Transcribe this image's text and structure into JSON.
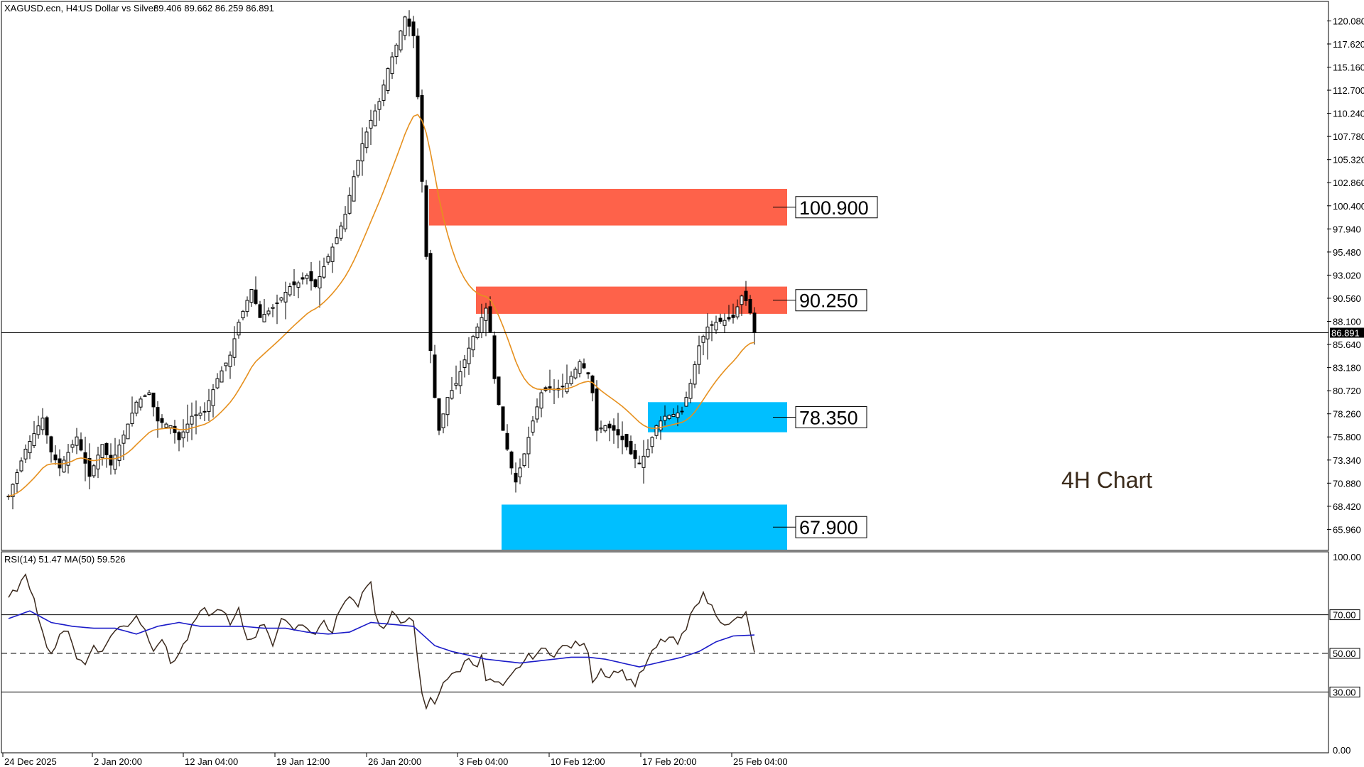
{
  "header": {
    "symbol": "XAGUSD.ecn, H4:",
    "description": "US Dollar vs Silver",
    "ohlc": "89.406 89.662 86.259 86.891"
  },
  "overlay_text": "4H Chart",
  "current_price_label": "86.891",
  "zones": [
    {
      "label": "100.900",
      "color": "#fe624a",
      "price_top": 102.2,
      "price_bottom": 98.3,
      "start": "29 Jan 08:00",
      "end": "26 Feb 16:00"
    },
    {
      "label": "90.250",
      "color": "#fe624a",
      "price_top": 91.8,
      "price_bottom": 88.9,
      "start": "3 Feb 12:00",
      "end": "26 Feb 16:00"
    },
    {
      "label": "78.350",
      "color": "#00bfff",
      "price_top": 79.5,
      "price_bottom": 76.3,
      "start": "18 Feb 16:00",
      "end": "26 Feb 16:00"
    },
    {
      "label": "67.900",
      "color": "#00bfff",
      "price_top": 68.6,
      "price_bottom": 63.8,
      "start": "5 Feb 04:00",
      "end": "26 Feb 16:00"
    }
  ],
  "rsi_header": "RSI(14) 51.47 MA(50) 59.526",
  "colors": {
    "candles": "#000000",
    "ema": "#e6901e",
    "rsi_line": "#3b2a1e",
    "rsi_ma": "#1b1bc8",
    "current_price_line": "#000000"
  },
  "chart_data": [
    {
      "type": "candlestick",
      "title": "XAGUSD.ecn, H4: US Dollar vs Silver",
      "ylim": [
        63.8,
        122.0
      ],
      "y_ticks": [
        "120.080",
        "117.620",
        "115.160",
        "112.700",
        "110.240",
        "107.780",
        "105.320",
        "102.860",
        "100.400",
        "97.940",
        "95.480",
        "93.020",
        "90.560",
        "88.100",
        "85.640",
        "83.180",
        "80.720",
        "78.260",
        "75.800",
        "73.340",
        "70.880",
        "68.420",
        "65.960"
      ],
      "x_ticks": [
        "24 Dec 2025",
        "2 Jan 20:00",
        "12 Jan 04:00",
        "19 Jan 12:00",
        "26 Jan 20:00",
        "3 Feb 04:00",
        "10 Feb 12:00",
        "17 Feb 20:00",
        "25 Feb 04:00"
      ],
      "price_path": [
        [
          0,
          69.5
        ],
        [
          4,
          74.5
        ],
        [
          8,
          77.8
        ],
        [
          10,
          74.2
        ],
        [
          12,
          72.5
        ],
        [
          16,
          75.8
        ],
        [
          19,
          71.6
        ],
        [
          22,
          75.0
        ],
        [
          24,
          72.8
        ],
        [
          27,
          76.0
        ],
        [
          30,
          79.5
        ],
        [
          33,
          80.5
        ],
        [
          35,
          77.5
        ],
        [
          38,
          77.0
        ],
        [
          40,
          75.5
        ],
        [
          43,
          78.0
        ],
        [
          46,
          78.5
        ],
        [
          49,
          82.0
        ],
        [
          52,
          84.5
        ],
        [
          54,
          88.0
        ],
        [
          57,
          91.5
        ],
        [
          59,
          88.5
        ],
        [
          61,
          89.2
        ],
        [
          63,
          90.0
        ],
        [
          66,
          91.8
        ],
        [
          68,
          92.2
        ],
        [
          70,
          93.0
        ],
        [
          72,
          91.8
        ],
        [
          75,
          95.0
        ],
        [
          77,
          97.0
        ],
        [
          79,
          99.5
        ],
        [
          81,
          103.5
        ],
        [
          83,
          107.0
        ],
        [
          85,
          109.5
        ],
        [
          87,
          111.5
        ],
        [
          89,
          115.0
        ],
        [
          91,
          117.5
        ],
        [
          93,
          120.5
        ],
        [
          95,
          118.5
        ],
        [
          96,
          112.0
        ],
        [
          97,
          103.0
        ],
        [
          98,
          95.0
        ],
        [
          99,
          85.0
        ],
        [
          100,
          80.0
        ],
        [
          101,
          76.5
        ],
        [
          103,
          80.0
        ],
        [
          105,
          81.5
        ],
        [
          107,
          84.0
        ],
        [
          109,
          86.5
        ],
        [
          111,
          88.5
        ],
        [
          112,
          89.5
        ],
        [
          113,
          87.0
        ],
        [
          114,
          82.0
        ],
        [
          116,
          76.5
        ],
        [
          118,
          72.5
        ],
        [
          119,
          71.0
        ],
        [
          121,
          74.0
        ],
        [
          123,
          77.5
        ],
        [
          125,
          80.5
        ],
        [
          127,
          81.0
        ],
        [
          129,
          80.8
        ],
        [
          131,
          81.5
        ],
        [
          133,
          83.0
        ],
        [
          134,
          83.8
        ],
        [
          136,
          82.5
        ],
        [
          137,
          80.5
        ],
        [
          138,
          76.5
        ],
        [
          140,
          77.0
        ],
        [
          142,
          76.5
        ],
        [
          144,
          75.5
        ],
        [
          146,
          74.0
        ],
        [
          148,
          73.0
        ],
        [
          150,
          74.5
        ],
        [
          152,
          77.0
        ],
        [
          154,
          78.0
        ],
        [
          156,
          78.2
        ],
        [
          158,
          78.5
        ],
        [
          159,
          80.0
        ],
        [
          160,
          81.5
        ],
        [
          162,
          85.5
        ],
        [
          164,
          87.5
        ],
        [
          166,
          88.0
        ],
        [
          168,
          88.2
        ],
        [
          170,
          88.5
        ],
        [
          172,
          90.8
        ],
        [
          173,
          90.3
        ],
        [
          174,
          89.0
        ],
        [
          175,
          86.891
        ]
      ]
    },
    {
      "type": "line",
      "title": "RSI(14) 51.47 MA(50) 59.526",
      "ylim": [
        0,
        100
      ],
      "y_ticks": [
        "100.00",
        "70.00",
        "50.00",
        "30.00",
        "0.00"
      ],
      "levels": [
        70,
        50,
        30
      ],
      "series": [
        {
          "name": "RSI(14)",
          "values_path": [
            [
              0,
              78
            ],
            [
              2,
              84
            ],
            [
              4,
              89
            ],
            [
              6,
              80
            ],
            [
              8,
              60
            ],
            [
              10,
              50
            ],
            [
              12,
              58
            ],
            [
              14,
              63
            ],
            [
              16,
              48
            ],
            [
              18,
              44
            ],
            [
              20,
              55
            ],
            [
              22,
              50
            ],
            [
              24,
              60
            ],
            [
              26,
              63
            ],
            [
              28,
              65
            ],
            [
              30,
              70
            ],
            [
              32,
              62
            ],
            [
              34,
              53
            ],
            [
              36,
              58
            ],
            [
              38,
              45
            ],
            [
              40,
              50
            ],
            [
              42,
              58
            ],
            [
              44,
              68
            ],
            [
              46,
              72
            ],
            [
              48,
              70
            ],
            [
              50,
              74
            ],
            [
              52,
              64
            ],
            [
              54,
              72
            ],
            [
              56,
              57
            ],
            [
              58,
              60
            ],
            [
              60,
              66
            ],
            [
              62,
              55
            ],
            [
              64,
              68
            ],
            [
              66,
              63
            ],
            [
              68,
              65
            ],
            [
              70,
              64
            ],
            [
              72,
              60
            ],
            [
              74,
              67
            ],
            [
              76,
              60
            ],
            [
              78,
              75
            ],
            [
              80,
              78
            ],
            [
              82,
              76
            ],
            [
              84,
              86
            ],
            [
              85,
              88
            ],
            [
              86,
              70
            ],
            [
              88,
              62
            ],
            [
              90,
              70
            ],
            [
              92,
              66
            ],
            [
              94,
              70
            ],
            [
              95,
              65
            ],
            [
              96,
              45
            ],
            [
              97,
              28
            ],
            [
              98,
              22
            ],
            [
              99,
              26
            ],
            [
              100,
              24
            ],
            [
              102,
              36
            ],
            [
              104,
              38
            ],
            [
              106,
              42
            ],
            [
              108,
              48
            ],
            [
              110,
              44
            ],
            [
              111,
              48
            ],
            [
              112,
              36
            ],
            [
              114,
              35
            ],
            [
              116,
              32
            ],
            [
              118,
              38
            ],
            [
              120,
              44
            ],
            [
              122,
              48
            ],
            [
              124,
              50
            ],
            [
              126,
              52
            ],
            [
              128,
              50
            ],
            [
              130,
              53
            ],
            [
              132,
              54
            ],
            [
              134,
              55
            ],
            [
              136,
              52
            ],
            [
              137,
              36
            ],
            [
              139,
              42
            ],
            [
              141,
              38
            ],
            [
              143,
              42
            ],
            [
              145,
              38
            ],
            [
              147,
              34
            ],
            [
              149,
              42
            ],
            [
              151,
              50
            ],
            [
              153,
              56
            ],
            [
              155,
              58
            ],
            [
              157,
              55
            ],
            [
              159,
              62
            ],
            [
              161,
              76
            ],
            [
              163,
              80
            ],
            [
              165,
              74
            ],
            [
              167,
              68
            ],
            [
              169,
              64
            ],
            [
              171,
              68
            ],
            [
              173,
              70
            ],
            [
              174,
              60
            ],
            [
              175,
              51.47
            ]
          ]
        },
        {
          "name": "MA(50)",
          "values_path": [
            [
              0,
              68
            ],
            [
              5,
              72
            ],
            [
              10,
              66
            ],
            [
              15,
              64
            ],
            [
              20,
              63
            ],
            [
              25,
              63
            ],
            [
              30,
              60
            ],
            [
              35,
              64
            ],
            [
              40,
              66
            ],
            [
              45,
              64
            ],
            [
              50,
              64
            ],
            [
              55,
              64
            ],
            [
              60,
              63
            ],
            [
              65,
              63
            ],
            [
              70,
              61
            ],
            [
              75,
              60
            ],
            [
              80,
              61
            ],
            [
              85,
              66
            ],
            [
              90,
              65
            ],
            [
              95,
              64
            ],
            [
              98,
              58
            ],
            [
              100,
              54
            ],
            [
              104,
              51
            ],
            [
              108,
              49
            ],
            [
              112,
              47
            ],
            [
              116,
              46
            ],
            [
              120,
              45
            ],
            [
              124,
              46
            ],
            [
              128,
              47
            ],
            [
              132,
              48
            ],
            [
              136,
              48
            ],
            [
              140,
              47
            ],
            [
              144,
              45
            ],
            [
              148,
              43
            ],
            [
              150,
              44
            ],
            [
              154,
              46
            ],
            [
              158,
              48
            ],
            [
              162,
              51
            ],
            [
              166,
              56
            ],
            [
              170,
              59
            ],
            [
              175,
              59.526
            ]
          ]
        }
      ]
    }
  ]
}
